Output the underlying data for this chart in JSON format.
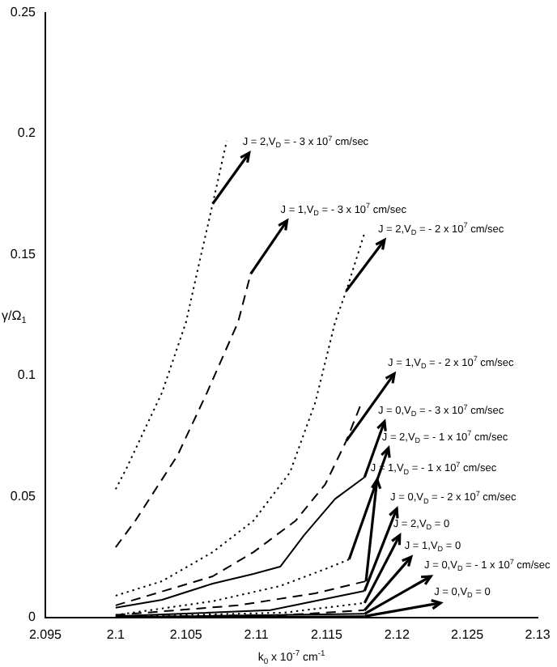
{
  "chart_data": {
    "type": "line",
    "xlabel": "k$_{0}$ x 10$^{-7}$ cm$^{-1}$",
    "ylabel": "γ/Ω$_{1}$",
    "xlim": [
      2.095,
      2.13
    ],
    "xticks": [
      2.095,
      2.1,
      2.105,
      2.11,
      2.115,
      2.12,
      2.125,
      2.13
    ],
    "ylim": [
      0,
      0.25
    ],
    "yticks": [
      0,
      0.05,
      0.1,
      0.15,
      0.2,
      0.25
    ],
    "grid": false,
    "marker": "none",
    "series": [
      {
        "color": "#000000",
        "line_style": "dotted",
        "x": [
          2.1,
          2.1008,
          2.1033,
          2.105,
          2.106,
          2.1069,
          2.1079
        ],
        "values": [
          0.053,
          0.062,
          0.093,
          0.122,
          0.148,
          0.171,
          0.197
        ]
      },
      {
        "color": "#000000",
        "line_style": "dashed",
        "x": [
          2.1,
          2.1014,
          2.1044,
          2.1065,
          2.1087,
          2.1096
        ],
        "values": [
          0.029,
          0.04,
          0.067,
          0.093,
          0.122,
          0.142
        ]
      },
      {
        "color": "#000000",
        "line_style": "dotted",
        "x": [
          2.1,
          2.1033,
          2.1069,
          2.1098,
          2.1124,
          2.1142,
          2.1156,
          2.1164,
          2.1177
        ],
        "values": [
          0.009,
          0.015,
          0.027,
          0.04,
          0.06,
          0.089,
          0.122,
          0.135,
          0.159
        ]
      },
      {
        "color": "#000000",
        "line_style": "dashed",
        "x": [
          2.1,
          2.1069,
          2.1098,
          2.1128,
          2.1149,
          2.1164,
          2.1175
        ],
        "values": [
          0.005,
          0.017,
          0.027,
          0.04,
          0.055,
          0.073,
          0.089
        ]
      },
      {
        "color": "#000000",
        "line_style": "solid",
        "x": [
          2.1,
          2.1033,
          2.1069,
          2.1098,
          2.1117,
          2.1134,
          2.1156,
          2.1177
        ],
        "values": [
          0.004,
          0.0073,
          0.014,
          0.018,
          0.021,
          0.034,
          0.049,
          0.058
        ]
      },
      {
        "color": "#000000",
        "line_style": "dotted",
        "x": [
          2.1,
          2.1069,
          2.1117,
          2.1149,
          2.1166
        ],
        "values": [
          0.001,
          0.0067,
          0.013,
          0.02,
          0.024
        ]
      },
      {
        "color": "#000000",
        "line_style": "dashed",
        "x": [
          2.1,
          2.1087,
          2.1142,
          2.1178
        ],
        "values": [
          0.001,
          0.005,
          0.01,
          0.015
        ]
      },
      {
        "color": "#000000",
        "line_style": "solid",
        "x": [
          2.1,
          2.111,
          2.1177
        ],
        "values": [
          0.0005,
          0.003,
          0.011
        ]
      },
      {
        "color": "#000000",
        "line_style": "dotted",
        "x": [
          2.1,
          2.112,
          2.1177
        ],
        "values": [
          0.0003,
          0.002,
          0.006
        ]
      },
      {
        "color": "#000000",
        "line_style": "dashed",
        "x": [
          2.1,
          2.112,
          2.1177
        ],
        "values": [
          0.0002,
          0.001,
          0.003
        ]
      },
      {
        "color": "#000000",
        "line_style": "solid",
        "x": [
          2.1,
          2.1177
        ],
        "values": [
          0.0001,
          0.0015
        ]
      },
      {
        "color": "#000000",
        "line_style": "solid",
        "x": [
          2.1,
          2.1177
        ],
        "values": [
          0,
          0.0005
        ]
      }
    ],
    "annotations": [
      {
        "text": "J = 2,V$_{D}$ = - 3 x 10$^{7}$ cm/sec",
        "x": 2.1069,
        "y": 0.171
      },
      {
        "text": "J = 1,V$_{D}$ = - 3 x 10$^{7}$ cm/sec",
        "x": 2.1096,
        "y": 0.142
      },
      {
        "text": "J = 2,V$_{D}$ = - 2 x 10$^{7}$ cm/sec",
        "x": 2.1164,
        "y": 0.135
      },
      {
        "text": "J = 1,V$_{D}$ = - 2 x 10$^{7}$ cm/sec",
        "x": 2.1164,
        "y": 0.073
      },
      {
        "text": "J = 0,V$_{D}$ = - 3 x 10$^{7}$ cm/sec",
        "x": 2.1177,
        "y": 0.058
      },
      {
        "text": "J = 2,V$_{D}$ = - 1 x 10$^{7}$ cm/sec",
        "x": 2.1166,
        "y": 0.024
      },
      {
        "text": "J = 1,V$_{D}$ = - 1 x 10$^{7}$ cm/sec",
        "x": 2.1178,
        "y": 0.015
      },
      {
        "text": "J = 0,V$_{D}$ = - 2 x 10$^{7}$ cm/sec",
        "x": 2.1177,
        "y": 0.011
      },
      {
        "text": "J = 2,V$_{D}$ = 0",
        "x": 2.1177,
        "y": 0.006
      },
      {
        "text": "J = 1,V$_{D}$ = 0",
        "x": 2.1177,
        "y": 0.003
      },
      {
        "text": "J = 0,V$_{D}$ = - 1 x 10$^{7}$ cm/sec",
        "x": 2.1177,
        "y": 0.0015
      },
      {
        "text": "J = 0,V$_{D}$ = 0",
        "x": 2.1177,
        "y": 0.0005
      }
    ]
  }
}
